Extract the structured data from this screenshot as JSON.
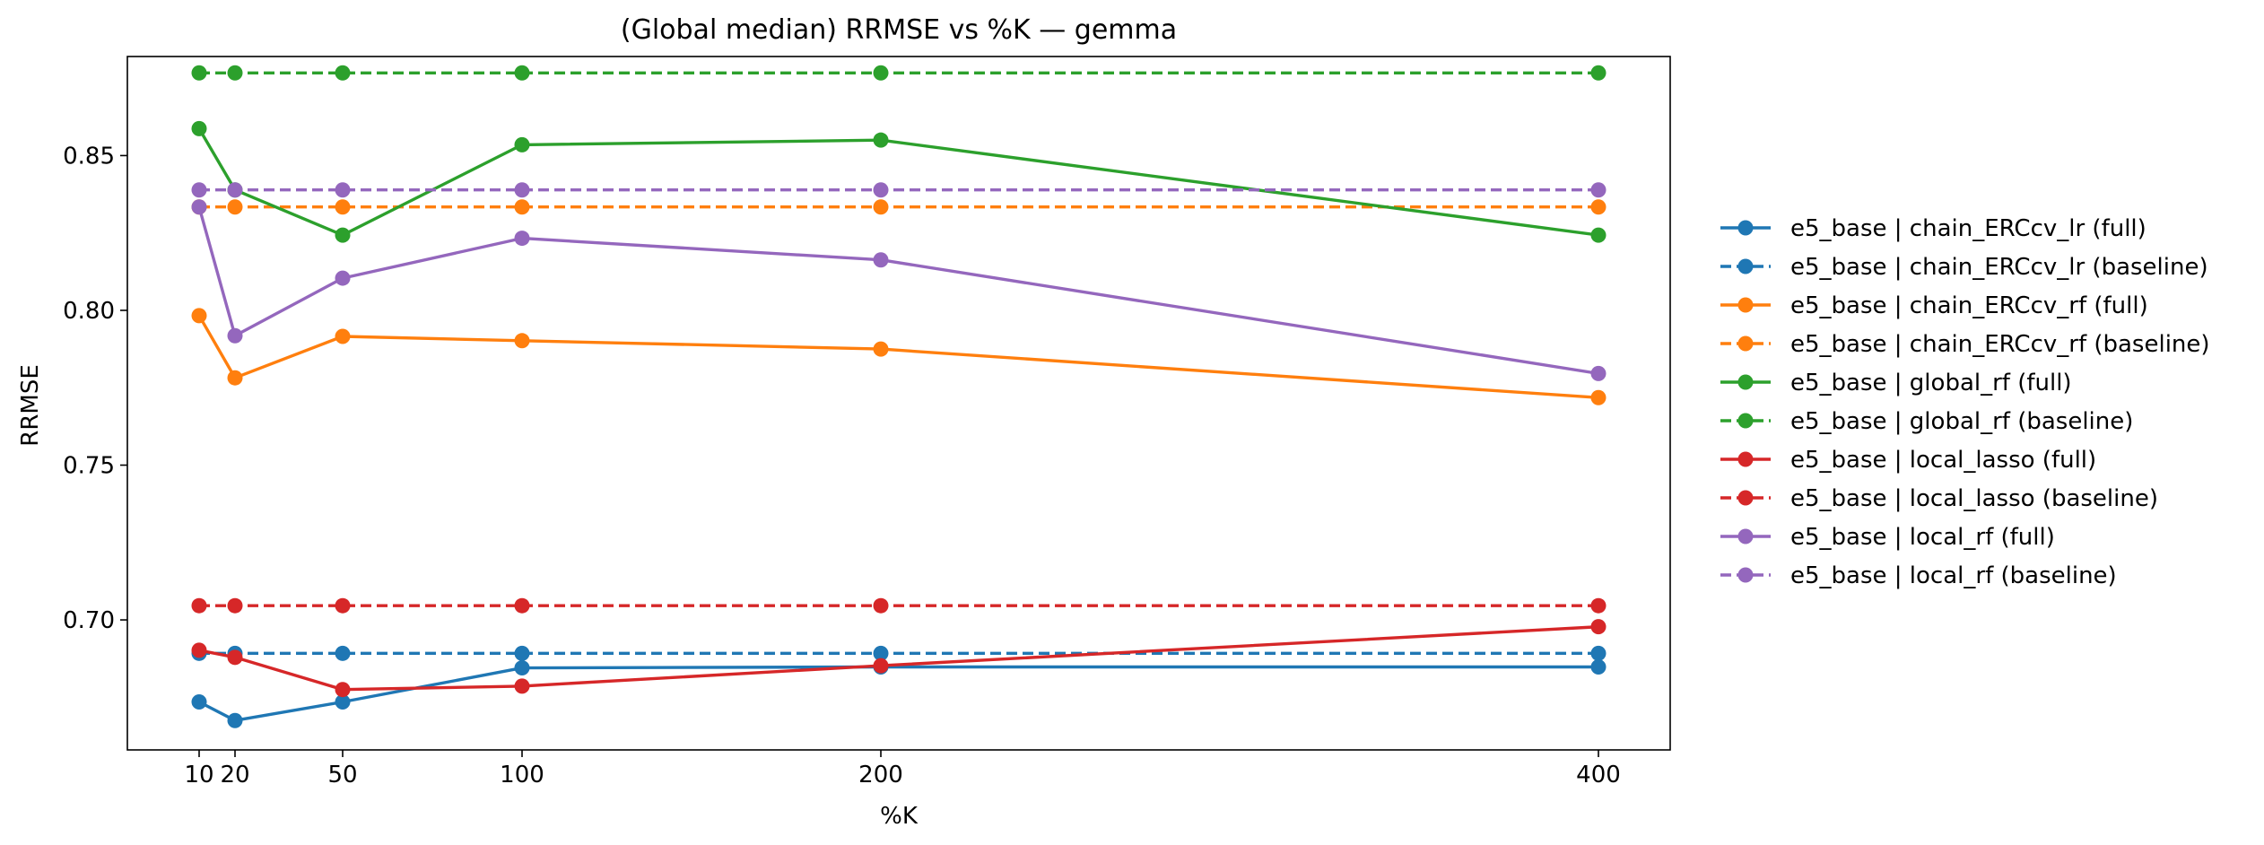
{
  "chart_data": {
    "type": "line",
    "title": "(Global median) RRMSE vs %K — gemma",
    "xlabel": "%K",
    "ylabel": "RRMSE",
    "x": [
      10,
      20,
      50,
      100,
      200,
      400
    ],
    "xticks": [
      "10",
      "20",
      "50",
      "100",
      "200",
      "400"
    ],
    "xlim": [
      -10,
      420
    ],
    "ylim": [
      0.658,
      0.882
    ],
    "yticks": [
      "0.70",
      "0.75",
      "0.80",
      "0.85"
    ],
    "grid": false,
    "legend_position": "outside-right",
    "series": [
      {
        "name": "e5_base | chain_ERCcv_lr (full)",
        "color": "#1f77b4",
        "dash": false,
        "values": [
          0.6735,
          0.6675,
          0.6735,
          0.6845,
          0.6848,
          0.6848
        ]
      },
      {
        "name": "e5_base | chain_ERCcv_lr (baseline)",
        "color": "#1f77b4",
        "dash": true,
        "values": [
          0.6892,
          0.6892,
          0.6892,
          0.6892,
          0.6892,
          0.6892
        ]
      },
      {
        "name": "e5_base | chain_ERCcv_rf (full)",
        "color": "#ff7f0e",
        "dash": false,
        "values": [
          0.7983,
          0.7782,
          0.7916,
          0.7902,
          0.7875,
          0.7718
        ]
      },
      {
        "name": "e5_base | chain_ERCcv_rf (baseline)",
        "color": "#ff7f0e",
        "dash": true,
        "values": [
          0.8334,
          0.8334,
          0.8334,
          0.8334,
          0.8334,
          0.8334
        ]
      },
      {
        "name": "e5_base | global_rf (full)",
        "color": "#2ca02c",
        "dash": false,
        "values": [
          0.8587,
          0.8389,
          0.8243,
          0.8535,
          0.855,
          0.8243
        ]
      },
      {
        "name": "e5_base | global_rf (baseline)",
        "color": "#2ca02c",
        "dash": true,
        "values": [
          0.8767,
          0.8767,
          0.8767,
          0.8767,
          0.8767,
          0.8767
        ]
      },
      {
        "name": "e5_base | local_lasso (full)",
        "color": "#d62728",
        "dash": false,
        "values": [
          0.6902,
          0.6879,
          0.6775,
          0.6786,
          0.6852,
          0.6978
        ]
      },
      {
        "name": "e5_base | local_lasso (baseline)",
        "color": "#d62728",
        "dash": true,
        "values": [
          0.7046,
          0.7046,
          0.7046,
          0.7046,
          0.7046,
          0.7046
        ]
      },
      {
        "name": "e5_base | local_rf (full)",
        "color": "#9467bd",
        "dash": false,
        "values": [
          0.8334,
          0.7918,
          0.8104,
          0.8233,
          0.8163,
          0.7796
        ]
      },
      {
        "name": "e5_base | local_rf (baseline)",
        "color": "#9467bd",
        "dash": true,
        "values": [
          0.8389,
          0.8389,
          0.8389,
          0.8389,
          0.8389,
          0.8389
        ]
      }
    ]
  }
}
